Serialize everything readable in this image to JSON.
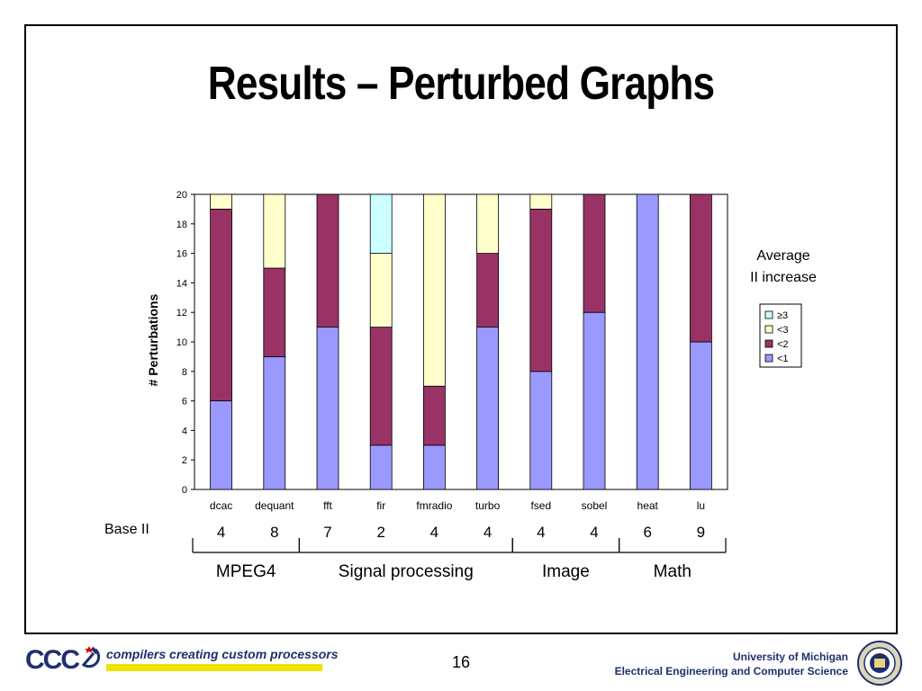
{
  "slide": {
    "title": "Results – Perturbed Graphs",
    "page_number": "16"
  },
  "chart_data": {
    "type": "bar",
    "stacked": true,
    "categories": [
      "dcac",
      "dequant",
      "fft",
      "fir",
      "fmradio",
      "turbo",
      "fsed",
      "sobel",
      "heat",
      "lu"
    ],
    "series": [
      {
        "name": "<1",
        "color": "#9999ff",
        "values": [
          6,
          9,
          11,
          3,
          3,
          11,
          8,
          12,
          20,
          10
        ]
      },
      {
        "name": "<2",
        "color": "#993366",
        "values": [
          13,
          6,
          9,
          8,
          4,
          5,
          11,
          8,
          0,
          10
        ]
      },
      {
        "name": "<3",
        "color": "#ffffcc",
        "values": [
          1,
          5,
          0,
          5,
          13,
          4,
          1,
          0,
          0,
          0
        ]
      },
      {
        "name": "≥3",
        "color": "#ccffff",
        "values": [
          0,
          0,
          0,
          4,
          0,
          0,
          0,
          0,
          0,
          0
        ]
      }
    ],
    "legend_order": [
      "≥3",
      "<3",
      "<2",
      "<1"
    ],
    "legend_title": "Average\nII increase",
    "legend_title_lines": [
      "Average",
      "II increase"
    ],
    "legend_position": "right",
    "ylabel": "# Perturbations",
    "ylim": [
      0,
      20
    ],
    "yticks": [
      "0",
      "2",
      "4",
      "6",
      "8",
      "10",
      "12",
      "14",
      "16",
      "18",
      "20"
    ],
    "grid": false,
    "base_ii_label": "Base II",
    "base_ii": [
      "4",
      "8",
      "7",
      "2",
      "4",
      "4",
      "4",
      "4",
      "6",
      "9"
    ],
    "groups": [
      {
        "name": "MPEG4",
        "start": 0,
        "end": 1
      },
      {
        "name": "Signal processing",
        "start": 2,
        "end": 5
      },
      {
        "name": "Image",
        "start": 6,
        "end": 7
      },
      {
        "name": "Math",
        "start": 8,
        "end": 9
      }
    ]
  },
  "footer": {
    "logo_text": "CCC",
    "tagline": "compilers creating custom processors",
    "university": "University of Michigan",
    "department": "Electrical Engineering and Computer Science"
  }
}
